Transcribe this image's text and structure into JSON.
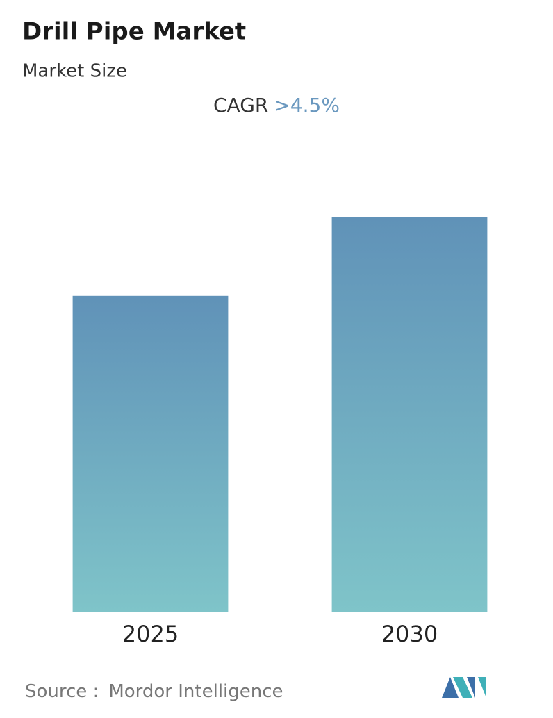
{
  "chart_data": {
    "type": "bar",
    "title": "Drill Pipe Market",
    "subtitle": "Market Size",
    "cagr_label": "CAGR",
    "cagr_value": ">4.5%",
    "categories": [
      "2025",
      "2030"
    ],
    "values": [
      80,
      100
    ],
    "ylim": [
      0,
      100
    ],
    "color": "#6a9fc0",
    "source_label": "Source :",
    "source": "Mordor Intelligence"
  }
}
